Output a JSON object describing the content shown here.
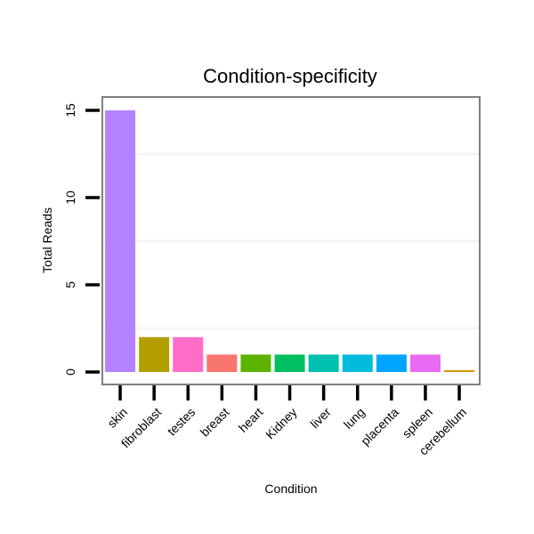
{
  "chart_data": {
    "type": "bar",
    "title": "Condition-specificity",
    "xlabel": "Condition",
    "ylabel": "Total Reads",
    "categories": [
      "skin",
      "fibroblast",
      "testes",
      "breast",
      "heart",
      "Kidney",
      "liver",
      "lung",
      "placenta",
      "spleen",
      "cerebellum"
    ],
    "values": [
      15,
      2,
      2,
      1,
      1,
      1,
      1,
      1,
      1,
      1,
      0.1
    ],
    "colors": [
      "#B583FF",
      "#B3A000",
      "#FF6DC9",
      "#F8766D",
      "#5BB300",
      "#00BF60",
      "#00C0AF",
      "#00BBDB",
      "#00A5FF",
      "#E96BF3",
      "#D89000"
    ],
    "yticks": [
      0,
      5,
      10,
      15
    ],
    "ylim": [
      -0.5,
      15.8
    ],
    "grid": "horizontal minor lines",
    "legend": "none"
  }
}
